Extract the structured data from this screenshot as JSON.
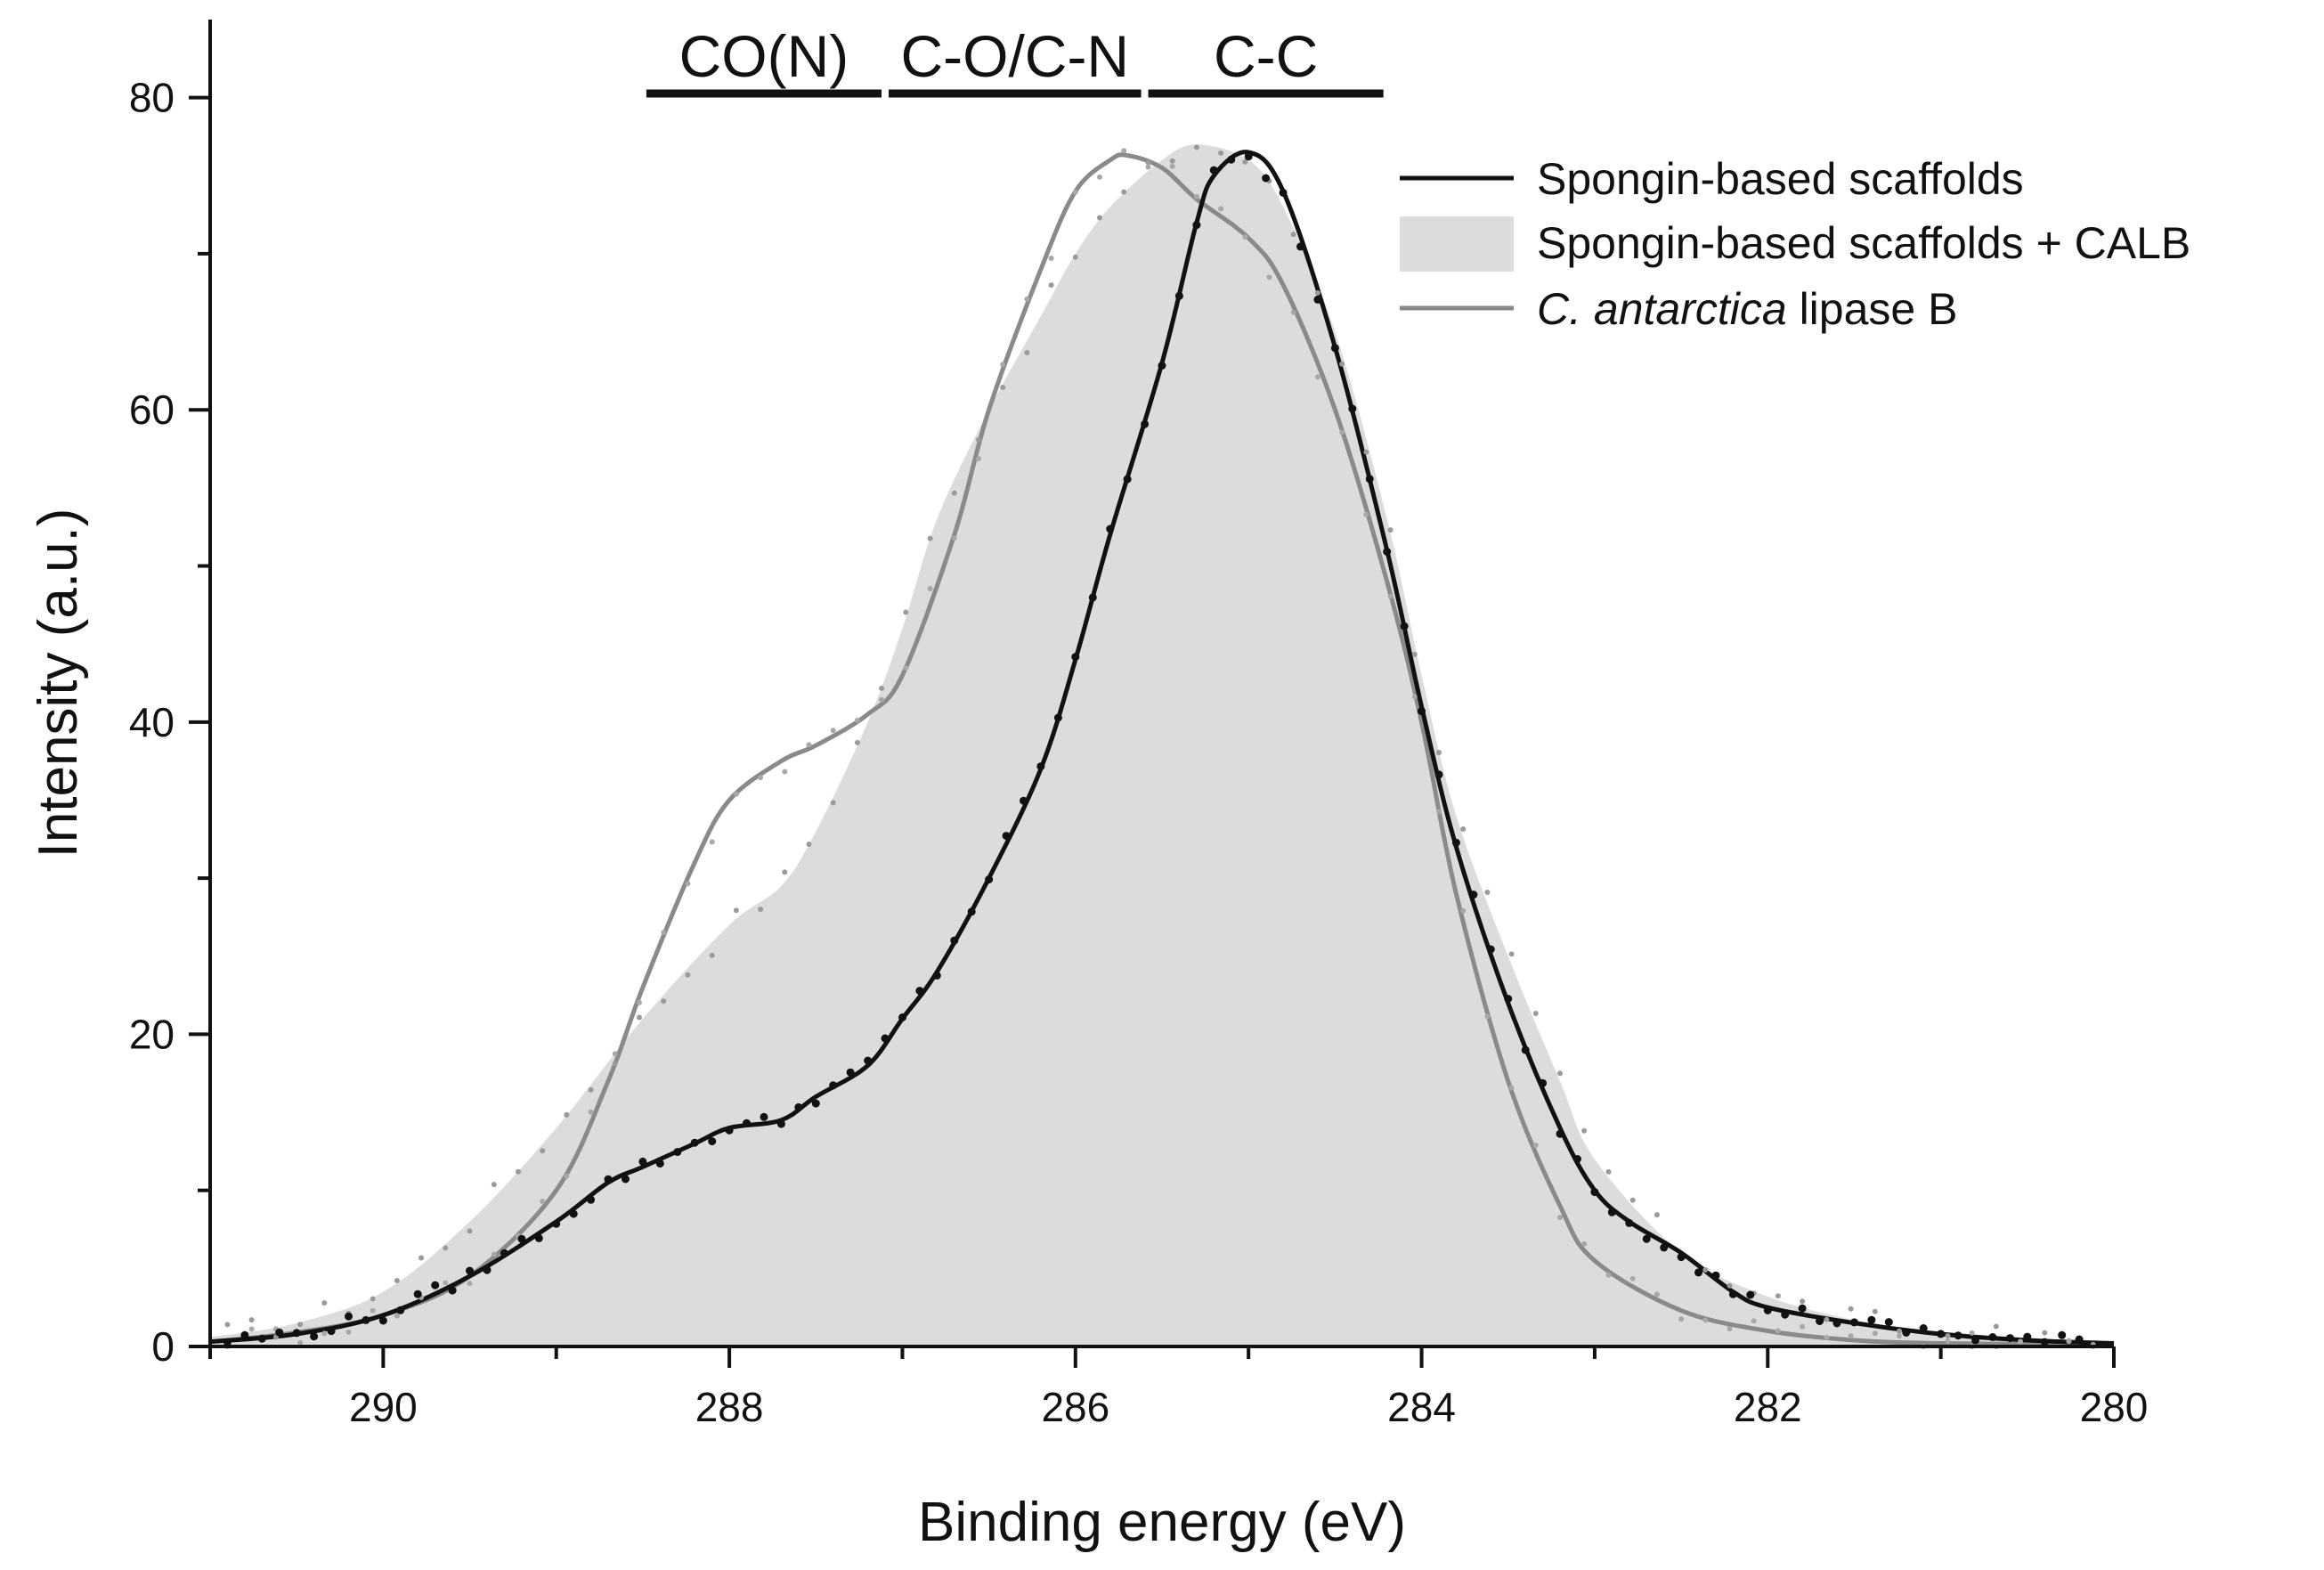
{
  "chart_data": {
    "type": "line",
    "title": "",
    "xlabel": "Binding energy (eV)",
    "ylabel": "Intensity (a.u.)",
    "xlim": [
      291,
      280
    ],
    "ylim": [
      0,
      85
    ],
    "x_reversed": true,
    "xticks": [
      290,
      288,
      286,
      284,
      282,
      280
    ],
    "yticks": [
      0,
      20,
      40,
      60,
      80
    ],
    "legend": {
      "position": "top-right",
      "entries": [
        {
          "label": "Spongin-based scaffolds",
          "style": "line",
          "color": "#111111"
        },
        {
          "label": "Spongin-based scaffolds + CALB",
          "style": "fill",
          "color": "#dcdcdc"
        },
        {
          "label_italic": "C. antarctica",
          "label_rest": " lipase B",
          "style": "line",
          "color": "#8a8a8a"
        }
      ]
    },
    "regions": [
      {
        "label": "CO(N)",
        "from": 288.5,
        "to": 287.1
      },
      {
        "label": "C-O/C-N",
        "from": 287.1,
        "to": 285.6
      },
      {
        "label": "C-C",
        "from": 285.6,
        "to": 284.2
      }
    ],
    "series": [
      {
        "name": "Spongin-based scaffolds + CALB",
        "style": "area",
        "color": "#dcdcdc",
        "x": [
          291,
          290.5,
          290,
          289.5,
          289,
          288.5,
          288,
          287.7,
          287.5,
          287.2,
          287,
          286.8,
          286.5,
          286.2,
          286,
          285.8,
          285.5,
          285.3,
          285,
          284.8,
          284.5,
          284.2,
          284,
          283.8,
          283.5,
          283.2,
          283,
          282.5,
          282,
          281.5,
          281,
          280.5,
          280
        ],
        "y": [
          0.6,
          1.5,
          3.5,
          8,
          14,
          21,
          27,
          29.5,
          33,
          40,
          46,
          53,
          60,
          66,
          70,
          73,
          76,
          77,
          76,
          73,
          65,
          53,
          43,
          34,
          25,
          17,
          12,
          6,
          3.2,
          1.7,
          0.9,
          0.4,
          0.2
        ]
      },
      {
        "name": "C. antarctica lipase B",
        "style": "line",
        "color": "#8a8a8a",
        "x": [
          291,
          290.5,
          290,
          289.5,
          289,
          288.7,
          288.5,
          288.2,
          288,
          287.7,
          287.5,
          287.2,
          287,
          286.7,
          286.5,
          286.2,
          286,
          285.8,
          285.7,
          285.5,
          285.3,
          285,
          284.8,
          284.5,
          284.2,
          284,
          283.8,
          283.5,
          283.2,
          283,
          282.5,
          282,
          281.5,
          281,
          280
        ],
        "y": [
          0.3,
          0.9,
          2.0,
          4.5,
          10,
          17,
          23,
          31,
          35,
          37.5,
          38.5,
          40.5,
          43,
          52,
          60,
          69,
          74,
          76,
          76.3,
          75.5,
          73.5,
          71,
          68,
          60,
          49,
          40,
          29,
          17,
          9,
          5.5,
          2.3,
          1.0,
          0.4,
          0.2,
          0.1
        ]
      },
      {
        "name": "Spongin-based scaffolds",
        "style": "line",
        "color": "#111111",
        "x": [
          291,
          290.5,
          290,
          289.5,
          289,
          288.7,
          288.5,
          288.2,
          288,
          287.7,
          287.5,
          287.2,
          287,
          286.8,
          286.5,
          286.2,
          286,
          285.8,
          285.5,
          285.3,
          285.2,
          285,
          284.8,
          284.5,
          284.2,
          284,
          283.8,
          283.5,
          283.2,
          283,
          282.8,
          282.5,
          282.2,
          282,
          281.5,
          281,
          280.5,
          280
        ],
        "y": [
          0.3,
          0.8,
          2.0,
          4.5,
          8,
          10.5,
          11.5,
          13,
          14,
          14.5,
          16,
          18,
          21,
          24,
          30,
          37,
          44,
          52,
          63,
          72,
          75,
          76.5,
          74,
          64,
          51,
          41,
          32,
          22,
          14,
          10,
          8,
          6,
          3.5,
          2.5,
          1.5,
          0.8,
          0.4,
          0.2
        ]
      }
    ]
  }
}
